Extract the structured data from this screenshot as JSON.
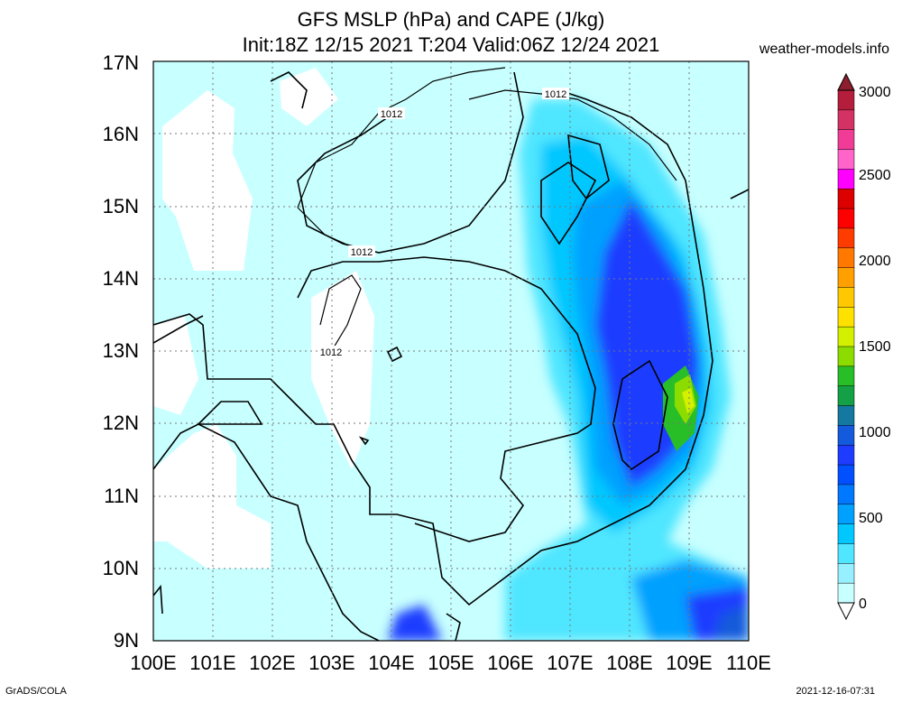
{
  "header": {
    "title_line1": "GFS MSLP (hPa) and CAPE (J/kg)",
    "title_line2": "Init:18Z 12/15 2021 T:204 Valid:06Z 12/24 2021",
    "site": "weather-models.info"
  },
  "axes": {
    "lat_labels": [
      "17N",
      "16N",
      "15N",
      "14N",
      "13N",
      "12N",
      "11N",
      "10N",
      "9N"
    ],
    "lon_labels": [
      "100E",
      "101E",
      "102E",
      "103E",
      "104E",
      "105E",
      "106E",
      "107E",
      "108E",
      "109E",
      "110E"
    ]
  },
  "isobars": {
    "label_a": "1012",
    "label_b": "1012",
    "label_c": "1012",
    "label_d": "1012"
  },
  "colorbar": {
    "labels": [
      "3000",
      "2500",
      "2000",
      "1500",
      "1000",
      "500",
      "0"
    ],
    "colors": [
      "#b41e3c",
      "#d23264",
      "#f03c96",
      "#ff64c8",
      "#ff00ff",
      "#dc0000",
      "#ff0000",
      "#ff3c00",
      "#ff7800",
      "#ffa000",
      "#ffc800",
      "#ffe100",
      "#d2f000",
      "#8cdc00",
      "#28be28",
      "#14a046",
      "#1478a0",
      "#145adc",
      "#1e3cff",
      "#0050ff",
      "#0078ff",
      "#00a0ff",
      "#00c8ff",
      "#50e6ff",
      "#96f0ff",
      "#c8ffff"
    ]
  },
  "footer": {
    "left": "GrADS/COLA",
    "right": "2021-12-16-07:31"
  },
  "colors": {
    "background": "#ffffff",
    "low_cape": "#c8ffff",
    "mid_cape": "#00c8ff",
    "high_cape": "#1e3cff",
    "peak_cape": "#8cdc00"
  }
}
